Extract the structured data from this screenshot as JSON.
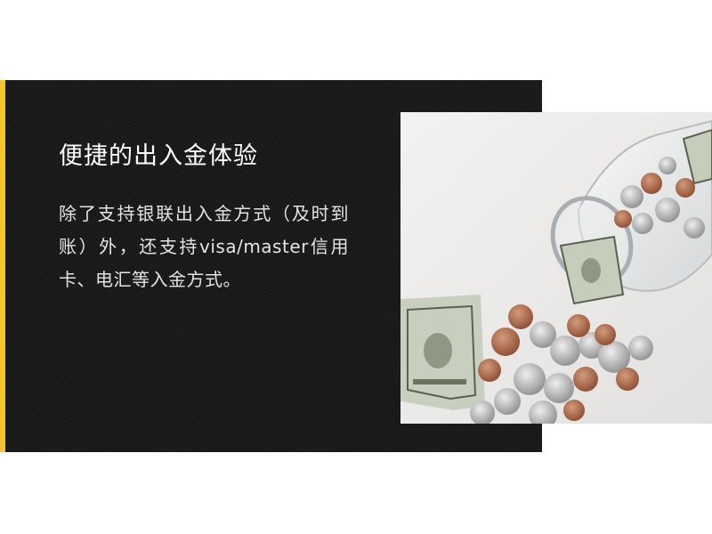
{
  "slide": {
    "title": "便捷的出入金体验",
    "body": "除了支持银联出入金方式（及时到账）外，还支持visa/master信用卡、电汇等入金方式。"
  },
  "colors": {
    "accent": "#f5c531",
    "panel": "#1b1b1b",
    "title_text": "#ffffff",
    "body_text": "#e4e4e4",
    "photo_background": "#efeeec"
  }
}
